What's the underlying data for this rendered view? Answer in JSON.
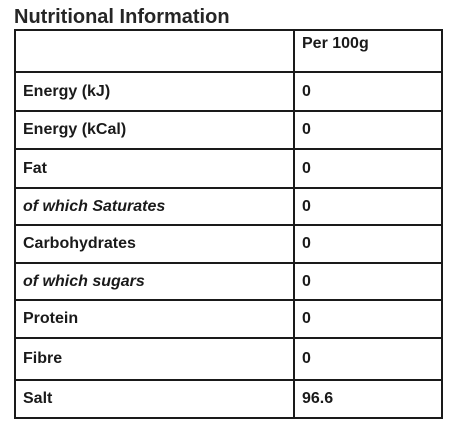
{
  "title": "Nutritional Information",
  "table": {
    "header": {
      "label": "",
      "value": "Per 100g"
    },
    "rows": [
      {
        "label": "Energy (kJ)",
        "value": "0"
      },
      {
        "label": "Energy (kCal)",
        "value": "0"
      },
      {
        "label": "Fat",
        "value": "0"
      },
      {
        "label": "of which Saturates",
        "value": "0"
      },
      {
        "label": "Carbohydrates",
        "value": "0"
      },
      {
        "label": "of which sugars",
        "value": "0"
      },
      {
        "label": "Protein",
        "value": "0"
      },
      {
        "label": "Fibre",
        "value": "0"
      },
      {
        "label": "Salt",
        "value": "96.6"
      }
    ]
  }
}
